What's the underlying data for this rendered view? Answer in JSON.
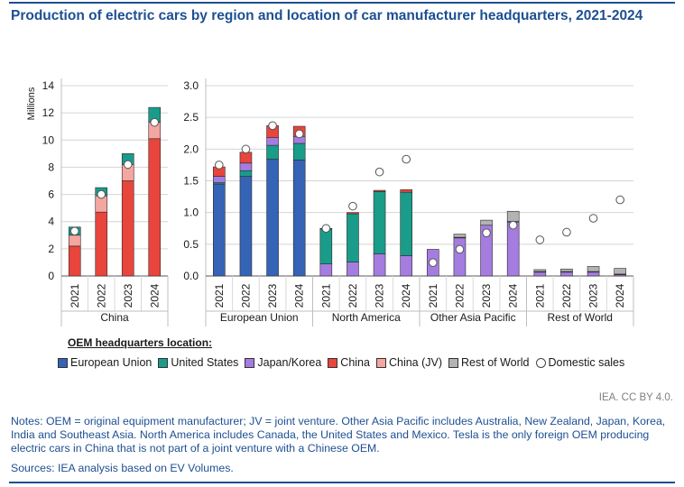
{
  "title": "Production of electric cars by region and location of car manufacturer headquarters, 2021-2024",
  "credit": "IEA. CC BY 4.0.",
  "notes": "Notes: OEM = original equipment manufacturer; JV = joint venture. Other Asia Pacific includes Australia, New Zealand, Japan, Korea, India and Southeast Asia. North America includes Canada, the United States and Mexico. Tesla is the only foreign OEM producing electric cars in China that is not part of a joint venture with a Chinese OEM.",
  "sources": "Sources: IEA analysis based on EV Volumes.",
  "legend_title": "OEM headquarters location:",
  "colors": {
    "European Union": "#3563b5",
    "United States": "#1a9c8a",
    "Japan/Korea": "#a57ce0",
    "China": "#e8453c",
    "China (JV)": "#f4a6a0",
    "Rest of World": "#b3b3b3"
  },
  "legend": [
    {
      "label": "European Union",
      "key": "European Union"
    },
    {
      "label": "United States",
      "key": "United States"
    },
    {
      "label": "Japan/Korea",
      "key": "Japan/Korea"
    },
    {
      "label": "China",
      "key": "China"
    },
    {
      "label": "China (JV)",
      "key": "China (JV)"
    },
    {
      "label": "Rest of World",
      "key": "Rest of World"
    },
    {
      "label": "Domestic sales",
      "key": "marker"
    }
  ],
  "chart_data": [
    {
      "type": "bar",
      "stacked": true,
      "ylabel": "Millions",
      "ylim": [
        0,
        14
      ],
      "yticks": [
        "0",
        "2",
        "4",
        "6",
        "8",
        "10",
        "12",
        "14"
      ],
      "groups": [
        {
          "region": "China",
          "categories": [
            "2021",
            "2022",
            "2023",
            "2024"
          ],
          "series": [
            {
              "name": "China",
              "values": [
                2.2,
                4.7,
                7.0,
                10.1
              ]
            },
            {
              "name": "China (JV)",
              "values": [
                0.8,
                1.2,
                1.2,
                1.2
              ]
            },
            {
              "name": "United States",
              "values": [
                0.6,
                0.6,
                0.8,
                1.1
              ]
            }
          ],
          "domestic_sales": [
            3.3,
            6.0,
            8.2,
            11.3
          ]
        }
      ]
    },
    {
      "type": "bar",
      "stacked": true,
      "ylim": [
        0,
        3.0
      ],
      "yticks": [
        "0.0",
        "0.5",
        "1.0",
        "1.5",
        "2.0",
        "2.5",
        "3.0"
      ],
      "groups": [
        {
          "region": "European Union",
          "categories": [
            "2021",
            "2022",
            "2023",
            "2024"
          ],
          "series": [
            {
              "name": "European Union",
              "values": [
                1.45,
                1.57,
                1.84,
                1.83
              ]
            },
            {
              "name": "United States",
              "values": [
                0.02,
                0.09,
                0.22,
                0.26
              ]
            },
            {
              "name": "Japan/Korea",
              "values": [
                0.1,
                0.12,
                0.12,
                0.11
              ]
            },
            {
              "name": "China",
              "values": [
                0.15,
                0.17,
                0.19,
                0.16
              ]
            }
          ],
          "domestic_sales": [
            1.75,
            2.0,
            2.37,
            2.24
          ]
        },
        {
          "region": "North America",
          "categories": [
            "2021",
            "2022",
            "2023",
            "2024"
          ],
          "series": [
            {
              "name": "European Union",
              "values": [
                0.0,
                0.0,
                0.0,
                0.0
              ]
            },
            {
              "name": "Japan/Korea",
              "values": [
                0.19,
                0.22,
                0.35,
                0.32
              ]
            },
            {
              "name": "United States",
              "values": [
                0.55,
                0.76,
                0.98,
                1.0
              ]
            },
            {
              "name": "China",
              "values": [
                0.01,
                0.02,
                0.02,
                0.04
              ]
            }
          ],
          "domestic_sales": [
            0.75,
            1.1,
            1.64,
            1.84
          ]
        },
        {
          "region": "Other Asia Pacific",
          "categories": [
            "2021",
            "2022",
            "2023",
            "2024"
          ],
          "series": [
            {
              "name": "Japan/Korea",
              "values": [
                0.42,
                0.6,
                0.8,
                0.85
              ]
            },
            {
              "name": "China",
              "values": [
                0.0,
                0.01,
                0.0,
                0.01
              ]
            },
            {
              "name": "Rest of World",
              "values": [
                0.0,
                0.05,
                0.08,
                0.16
              ]
            }
          ],
          "domestic_sales": [
            0.21,
            0.42,
            0.68,
            0.8
          ]
        },
        {
          "region": "Rest of World",
          "categories": [
            "2021",
            "2022",
            "2023",
            "2024"
          ],
          "series": [
            {
              "name": "Japan/Korea",
              "values": [
                0.06,
                0.06,
                0.06,
                0.02
              ]
            },
            {
              "name": "China",
              "values": [
                0.01,
                0.01,
                0.01,
                0.01
              ]
            },
            {
              "name": "Rest of World",
              "values": [
                0.03,
                0.04,
                0.08,
                0.09
              ]
            }
          ],
          "domestic_sales": [
            0.57,
            0.69,
            0.91,
            1.2
          ]
        }
      ]
    }
  ]
}
